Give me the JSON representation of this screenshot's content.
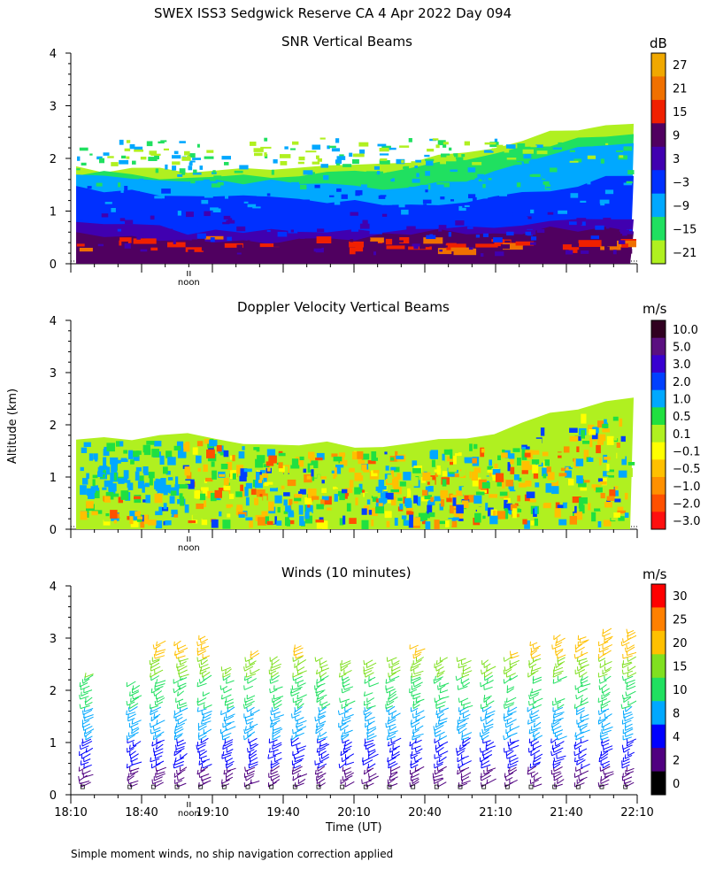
{
  "title": "SWEX ISS3 Sedgwick Reserve CA   4 Apr 2022 Day 094",
  "ylabel": "Altitude (km)",
  "xlabel": "Time (UT)",
  "footnote": "Simple moment winds, no ship navigation correction applied",
  "noon_label": "noon",
  "x_ticks": [
    "18:10",
    "18:40",
    "19:10",
    "19:40",
    "20:10",
    "20:40",
    "21:10",
    "21:40",
    "22:10"
  ],
  "y_ticks": [
    "0",
    "1",
    "2",
    "3",
    "4"
  ],
  "chart_data": [
    {
      "type": "heatmap",
      "title": "SNR Vertical Beams",
      "unit": "dB",
      "xlim": [
        "18:10",
        "22:10"
      ],
      "ylim": [
        0,
        4
      ],
      "colorbar_ticks": [
        "27",
        "21",
        "15",
        "9",
        "3",
        "−3",
        "−9",
        "−15",
        "−21"
      ],
      "colors": [
        "#f0a800",
        "#f07000",
        "#f02000",
        "#500060",
        "#4000b0",
        "#0030ff",
        "#00a8ff",
        "#20e060",
        "#b0f020"
      ],
      "layers": [
        {
          "name": "−9",
          "color": "#00a8ff",
          "top_km": [
            1.65,
            1.62,
            1.55,
            1.55,
            1.5,
            1.5,
            1.45,
            1.55,
            1.9,
            2.2,
            2.3
          ]
        },
        {
          "name": "−3",
          "color": "#0030ff",
          "top_km": [
            1.45,
            1.4,
            1.3,
            1.3,
            1.25,
            1.2,
            1.1,
            1.15,
            1.35,
            1.5,
            1.7
          ]
        },
        {
          "name": "3",
          "color": "#4000b0",
          "top_km": [
            0.75,
            0.72,
            0.6,
            0.6,
            0.6,
            0.62,
            0.7,
            0.75,
            0.75,
            0.8,
            0.8
          ]
        },
        {
          "name": "9",
          "color": "#500060",
          "top_km": [
            0.55,
            0.5,
            0.45,
            0.42,
            0.45,
            0.48,
            0.55,
            0.6,
            0.6,
            0.65,
            0.65
          ]
        }
      ]
    },
    {
      "type": "heatmap",
      "title": "Doppler Velocity Vertical Beams",
      "unit": "m/s",
      "xlim": [
        "18:10",
        "22:10"
      ],
      "ylim": [
        0,
        4
      ],
      "colorbar_ticks": [
        "10.0",
        "5.0",
        "3.0",
        "2.0",
        "1.0",
        "0.5",
        "0.1",
        "−0.1",
        "−0.5",
        "−1.0",
        "−2.0",
        "−3.0"
      ],
      "colors": [
        "#300020",
        "#5a1080",
        "#3800d0",
        "#0040ff",
        "#00a8ff",
        "#20e040",
        "#b0f020",
        "#ffff00",
        "#ffc000",
        "#ff9000",
        "#ff5000",
        "#ff1010"
      ],
      "top_km": [
        1.75,
        1.75,
        1.8,
        1.65,
        1.6,
        1.6,
        1.6,
        1.7,
        2.0,
        2.3,
        2.55
      ]
    },
    {
      "type": "barbs",
      "title": "Winds (10 minutes)",
      "unit": "m/s",
      "xlim": [
        "18:10",
        "22:10"
      ],
      "ylim": [
        0,
        4
      ],
      "colorbar_ticks": [
        "30",
        "25",
        "20",
        "15",
        "10",
        "8",
        "4",
        "2",
        "0"
      ],
      "colors": [
        "#ff0000",
        "#ff8000",
        "#ffc000",
        "#80e020",
        "#20e060",
        "#00a8ff",
        "#0000ff",
        "#500080",
        "#000000"
      ],
      "profile_times": [
        "18:15",
        "18:35",
        "18:45",
        "18:55",
        "19:05",
        "19:15",
        "19:25",
        "19:35",
        "19:45",
        "19:55",
        "20:05",
        "20:15",
        "20:25",
        "20:35",
        "20:45",
        "20:55",
        "21:05",
        "21:15",
        "21:25",
        "21:35",
        "21:45",
        "21:55",
        "22:05"
      ],
      "profile_top_km": [
        2.3,
        2.1,
        2.9,
        2.9,
        3.0,
        2.4,
        2.7,
        2.6,
        2.8,
        2.6,
        2.5,
        2.5,
        2.6,
        2.8,
        2.6,
        2.6,
        2.5,
        2.7,
        2.9,
        3.0,
        3.0,
        3.1,
        3.1
      ]
    }
  ]
}
